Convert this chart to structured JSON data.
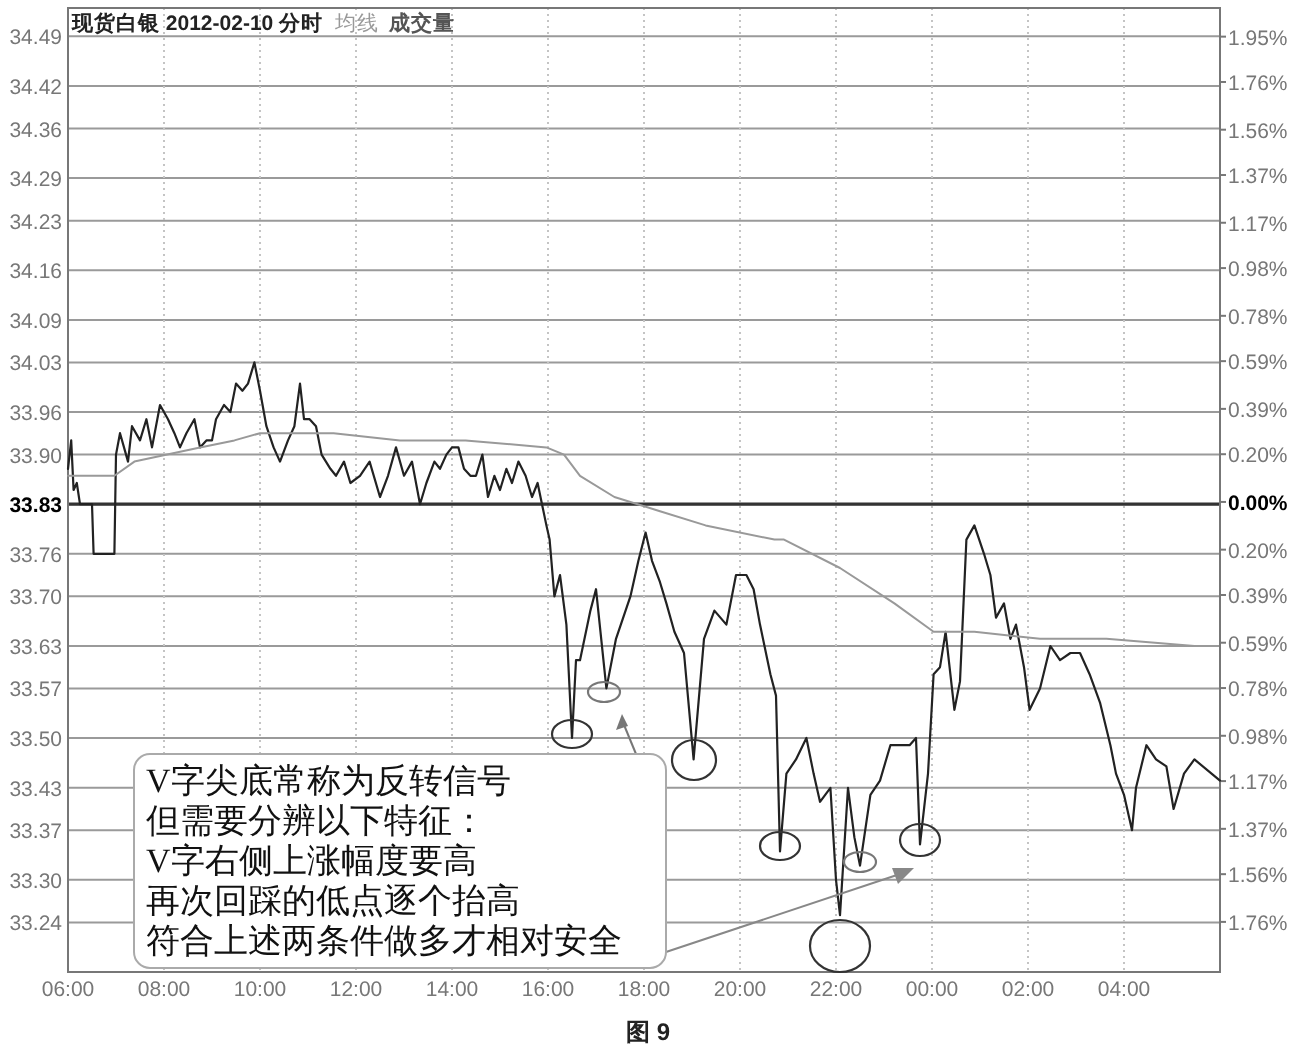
{
  "chart_data": {
    "type": "line",
    "title": "现货白银  2012-02-10 分时",
    "series": [
      {
        "color": "#222222",
        "x": [
          "2012-02-10T06:00",
          "2012-02-10T06:04",
          "2012-02-10T06:07",
          "2012-02-10T06:11",
          "2012-02-10T06:15",
          "2012-02-10T06:30",
          "2012-02-10T06:32",
          "2012-02-10T06:58",
          "2012-02-10T07:00",
          "2012-02-10T07:05",
          "2012-02-10T07:10",
          "2012-02-10T07:15",
          "2012-02-10T07:20",
          "2012-02-10T07:30",
          "2012-02-10T07:38",
          "2012-02-10T07:45",
          "2012-02-10T07:55",
          "2012-02-10T08:05",
          "2012-02-10T08:13",
          "2012-02-10T08:20",
          "2012-02-10T08:28",
          "2012-02-10T08:38",
          "2012-02-10T08:45",
          "2012-02-10T08:53",
          "2012-02-10T09:00",
          "2012-02-10T09:05",
          "2012-02-10T09:15",
          "2012-02-10T09:23",
          "2012-02-10T09:30",
          "2012-02-10T09:38",
          "2012-02-10T09:45",
          "2012-02-10T09:53",
          "2012-02-10T10:00",
          "2012-02-10T10:08",
          "2012-02-10T10:17",
          "2012-02-10T10:25",
          "2012-02-10T10:35",
          "2012-02-10T10:43",
          "2012-02-10T10:50",
          "2012-02-10T10:55",
          "2012-02-10T11:02",
          "2012-02-10T11:10",
          "2012-02-10T11:17",
          "2012-02-10T11:28",
          "2012-02-10T11:35",
          "2012-02-10T11:45",
          "2012-02-10T11:53",
          "2012-02-10T12:05",
          "2012-02-10T12:17",
          "2012-02-10T12:30",
          "2012-02-10T12:40",
          "2012-02-10T12:50",
          "2012-02-10T13:00",
          "2012-02-10T13:10",
          "2012-02-10T13:20",
          "2012-02-10T13:28",
          "2012-02-10T13:38",
          "2012-02-10T13:45",
          "2012-02-10T13:53",
          "2012-02-10T14:00",
          "2012-02-10T14:08",
          "2012-02-10T14:15",
          "2012-02-10T14:23",
          "2012-02-10T14:30",
          "2012-02-10T14:38",
          "2012-02-10T14:45",
          "2012-02-10T14:53",
          "2012-02-10T15:00",
          "2012-02-10T15:08",
          "2012-02-10T15:15",
          "2012-02-10T15:23",
          "2012-02-10T15:32",
          "2012-02-10T15:40",
          "2012-02-10T15:47",
          "2012-02-10T15:58",
          "2012-02-10T16:02",
          "2012-02-10T16:08",
          "2012-02-10T16:15",
          "2012-02-10T16:23",
          "2012-02-10T16:30",
          "2012-02-10T16:35",
          "2012-02-10T16:40",
          "2012-02-10T16:53",
          "2012-02-10T17:00",
          "2012-02-10T17:13",
          "2012-02-10T17:25",
          "2012-02-10T17:43",
          "2012-02-10T17:53",
          "2012-02-10T18:02",
          "2012-02-10T18:10",
          "2012-02-10T18:20",
          "2012-02-10T18:28",
          "2012-02-10T18:38",
          "2012-02-10T18:50",
          "2012-02-10T19:02",
          "2012-02-10T19:15",
          "2012-02-10T19:28",
          "2012-02-10T19:43",
          "2012-02-10T19:55",
          "2012-02-10T20:08",
          "2012-02-10T20:17",
          "2012-02-10T20:25",
          "2012-02-10T20:38",
          "2012-02-10T20:45",
          "2012-02-10T20:50",
          "2012-02-10T20:58",
          "2012-02-10T21:10",
          "2012-02-10T21:23",
          "2012-02-10T21:32",
          "2012-02-10T21:40",
          "2012-02-10T21:53",
          "2012-02-10T22:00",
          "2012-02-10T22:05",
          "2012-02-10T22:15",
          "2012-02-10T22:23",
          "2012-02-10T22:30",
          "2012-02-10T22:43",
          "2012-02-10T22:55",
          "2012-02-10T23:08",
          "2012-02-10T23:20",
          "2012-02-10T23:32",
          "2012-02-10T23:40",
          "2012-02-10T23:45",
          "2012-02-10T23:55",
          "2012-02-11T00:02",
          "2012-02-11T00:10",
          "2012-02-11T00:17",
          "2012-02-11T00:28",
          "2012-02-11T00:35",
          "2012-02-11T00:43",
          "2012-02-11T00:53",
          "2012-02-11T01:05",
          "2012-02-11T01:13",
          "2012-02-11T01:20",
          "2012-02-11T01:30",
          "2012-02-11T01:38",
          "2012-02-11T01:45",
          "2012-02-11T01:55",
          "2012-02-11T02:02",
          "2012-02-11T02:15",
          "2012-02-11T02:28",
          "2012-02-11T02:40",
          "2012-02-11T02:53",
          "2012-02-11T03:05",
          "2012-02-11T03:17",
          "2012-02-11T03:30",
          "2012-02-11T03:43",
          "2012-02-11T03:50",
          "2012-02-11T04:00",
          "2012-02-11T04:10",
          "2012-02-11T04:15",
          "2012-02-11T04:28",
          "2012-02-11T04:40",
          "2012-02-11T04:53",
          "2012-02-11T05:02",
          "2012-02-11T05:15",
          "2012-02-11T05:28",
          "2012-02-11T06:00"
        ],
        "values": [
          33.88,
          33.92,
          33.85,
          33.86,
          33.83,
          33.83,
          33.76,
          33.76,
          33.9,
          33.93,
          33.91,
          33.89,
          33.94,
          33.92,
          33.95,
          33.91,
          33.97,
          33.95,
          33.93,
          33.91,
          33.93,
          33.95,
          33.91,
          33.92,
          33.92,
          33.95,
          33.97,
          33.96,
          34.0,
          33.99,
          34.0,
          34.03,
          33.99,
          33.94,
          33.91,
          33.89,
          33.92,
          33.94,
          34.0,
          33.95,
          33.95,
          33.94,
          33.9,
          33.88,
          33.87,
          33.89,
          33.86,
          33.87,
          33.89,
          33.84,
          33.87,
          33.91,
          33.87,
          33.89,
          33.83,
          33.86,
          33.89,
          33.88,
          33.9,
          33.91,
          33.91,
          33.88,
          33.87,
          33.87,
          33.9,
          33.84,
          33.87,
          33.85,
          33.88,
          33.86,
          33.89,
          33.87,
          33.84,
          33.86,
          33.8,
          33.78,
          33.7,
          33.73,
          33.66,
          33.5,
          33.61,
          33.61,
          33.68,
          33.71,
          33.57,
          33.64,
          33.7,
          33.75,
          33.79,
          33.75,
          33.72,
          33.69,
          33.65,
          33.62,
          33.47,
          33.64,
          33.68,
          33.66,
          33.73,
          33.73,
          33.71,
          33.66,
          33.59,
          33.56,
          33.34,
          33.45,
          33.47,
          33.5,
          33.45,
          33.41,
          33.43,
          33.3,
          33.25,
          33.43,
          33.36,
          33.32,
          33.42,
          33.44,
          33.49,
          33.49,
          33.49,
          33.5,
          33.35,
          33.45,
          33.59,
          33.6,
          33.65,
          33.54,
          33.58,
          33.78,
          33.8,
          33.76,
          33.73,
          33.67,
          33.69,
          33.64,
          33.66,
          33.6,
          33.54,
          33.57,
          33.63,
          33.61,
          33.62,
          33.62,
          33.59,
          33.55,
          33.49,
          33.45,
          33.42,
          33.37,
          33.43,
          33.49,
          33.47,
          33.46,
          33.4,
          33.45,
          33.47,
          33.44
        ]
      },
      {
        "name": "均线",
        "color": "#999999",
        "x": [
          "2012-02-10T06:00",
          "2012-02-10T06:58",
          "2012-02-10T07:23",
          "2012-02-10T08:45",
          "2012-02-10T09:28",
          "2012-02-10T10:00",
          "2012-02-10T11:32",
          "2012-02-10T12:55",
          "2012-02-10T14:17",
          "2012-02-10T15:58",
          "2012-02-10T16:20",
          "2012-02-10T16:40",
          "2012-02-10T17:23",
          "2012-02-10T18:20",
          "2012-02-10T19:17",
          "2012-02-10T20:43",
          "2012-02-10T20:55",
          "2012-02-10T22:05",
          "2012-02-10T23:13",
          "2012-02-11T00:02",
          "2012-02-11T00:53",
          "2012-02-11T02:15",
          "2012-02-11T03:38",
          "2012-02-11T05:28"
        ],
        "values": [
          33.87,
          33.87,
          33.89,
          33.91,
          33.92,
          33.93,
          33.93,
          33.92,
          33.92,
          33.91,
          33.9,
          33.87,
          33.84,
          33.82,
          33.8,
          33.78,
          33.78,
          33.74,
          33.69,
          33.65,
          33.65,
          33.64,
          33.64,
          33.63
        ]
      }
    ],
    "xlim": [
      "2012-02-10T06:00",
      "2012-02-11T06:00"
    ],
    "xticks": [
      {
        "value": "2012-02-10T06:00",
        "label": "06:00"
      },
      {
        "value": "2012-02-10T08:00",
        "label": "08:00"
      },
      {
        "value": "2012-02-10T10:00",
        "label": "10:00"
      },
      {
        "value": "2012-02-10T12:00",
        "label": "12:00"
      },
      {
        "value": "2012-02-10T14:00",
        "label": "14:00"
      },
      {
        "value": "2012-02-10T16:00",
        "label": "16:00"
      },
      {
        "value": "2012-02-10T18:00",
        "label": "18:00"
      },
      {
        "value": "2012-02-10T20:00",
        "label": "20:00"
      },
      {
        "value": "2012-02-10T22:00",
        "label": "22:00"
      },
      {
        "value": "2012-02-11T00:00",
        "label": "00:00"
      },
      {
        "value": "2012-02-11T02:00",
        "label": "02:00"
      },
      {
        "value": "2012-02-11T04:00",
        "label": "04:00"
      }
    ],
    "ylim": [
      33.17,
      34.53
    ],
    "yticks": [
      34.49,
      34.42,
      34.36,
      34.29,
      34.23,
      34.16,
      34.09,
      34.03,
      33.96,
      {
        "value": 33.9,
        "label": "33.90"
      },
      33.83,
      33.76,
      {
        "value": 33.7,
        "label": "33.70"
      },
      33.63,
      33.57,
      {
        "value": 33.5,
        "label": "33.50"
      },
      33.43,
      33.37,
      {
        "value": 33.3,
        "label": "33.30"
      },
      33.24
    ],
    "y2lim": [
      -1.97,
      2.07
    ],
    "y2ticks": [
      {
        "value": 1.95,
        "label": "1.95%"
      },
      {
        "value": 1.76,
        "label": "1.76%"
      },
      {
        "value": 1.56,
        "label": "1.56%"
      },
      {
        "value": 1.37,
        "label": "1.37%"
      },
      {
        "value": 1.17,
        "label": "1.17%"
      },
      {
        "value": 0.98,
        "label": "0.98%"
      },
      {
        "value": 0.78,
        "label": "0.78%"
      },
      {
        "value": 0.59,
        "label": "0.59%"
      },
      {
        "value": 0.39,
        "label": "0.39%"
      },
      {
        "value": 0.2,
        "label": "0.20%"
      },
      {
        "value": 0,
        "label": "0.00%"
      },
      {
        "value": -0.2,
        "label": "0.20%"
      },
      {
        "value": -0.39,
        "label": "0.39%"
      },
      {
        "value": -0.59,
        "label": "0.59%"
      },
      {
        "value": -0.78,
        "label": "0.78%"
      },
      {
        "value": -0.98,
        "label": "0.98%"
      },
      {
        "value": -1.17,
        "label": "1.17%"
      },
      {
        "value": -1.37,
        "label": "1.37%"
      },
      {
        "value": -1.56,
        "label": "1.56%"
      },
      {
        "value": -1.76,
        "label": "1.76%"
      }
    ],
    "ref_lines": [
      {
        "axis": "y",
        "value": 33.83,
        "color": "#333333"
      }
    ],
    "grid": true,
    "legend": "top left",
    "marker": "none",
    "line_style": "solid",
    "annotations": [
      "成交量",
      "V字尖底常称为反转信号",
      "但需要分辨以下特征：",
      "V字右侧上涨幅度要高",
      "再次回踩的低点逐个抬高",
      "符合上述两条件做多才相对安全",
      "图 9"
    ]
  }
}
